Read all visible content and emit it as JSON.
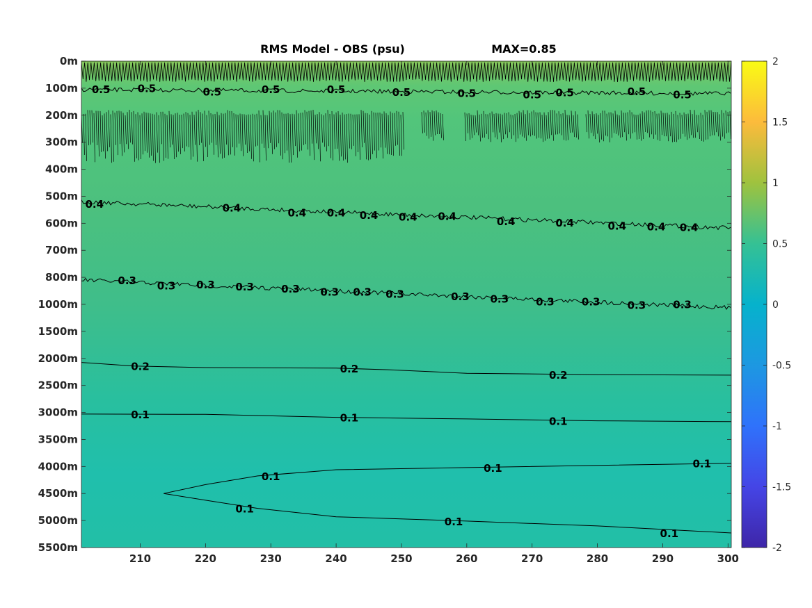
{
  "chart_data": {
    "type": "heatmap",
    "title": "RMS Model - OBS (psu)",
    "subtitle": "MAX=0.85",
    "x_ticks": [
      210,
      220,
      230,
      240,
      250,
      260,
      270,
      280,
      290,
      300
    ],
    "x_range": [
      201,
      300.5
    ],
    "y_tick_labels": [
      "0m",
      "100m",
      "200m",
      "300m",
      "400m",
      "500m",
      "600m",
      "700m",
      "800m",
      "1000m",
      "1500m",
      "2000m",
      "2500m",
      "3000m",
      "3500m",
      "4000m",
      "4500m",
      "5000m",
      "5500m"
    ],
    "colorbar": {
      "range": [
        -2,
        2
      ],
      "ticks": [
        "2",
        "1.5",
        "1",
        "0.5",
        "0",
        "-0.5",
        "-1",
        "-1.5",
        "-2"
      ]
    },
    "field": {
      "description_levels": [
        {
          "level": 0,
          "value": 0.66
        },
        {
          "level": 1,
          "value": 0.43
        },
        {
          "level": 11,
          "value": 0.21
        },
        {
          "level": 13,
          "value": 0.12
        },
        {
          "level": 18,
          "value": 0.06
        }
      ]
    },
    "contours": [
      {
        "level_label": "0.5",
        "y_level": 1.05,
        "noisy": true,
        "labels": [
          {
            "x": 204,
            "text": "0.5"
          },
          {
            "x": 211,
            "text": "0.5"
          },
          {
            "x": 221,
            "text": "0.5"
          },
          {
            "x": 230,
            "text": "0.5"
          },
          {
            "x": 240,
            "text": "0.5"
          },
          {
            "x": 250,
            "text": "0.5"
          },
          {
            "x": 260,
            "text": "0.5"
          },
          {
            "x": 270,
            "text": "0.5"
          },
          {
            "x": 275,
            "text": "0.5"
          },
          {
            "x": 286,
            "text": "0.5"
          },
          {
            "x": 293,
            "text": "0.5"
          }
        ]
      },
      {
        "level_label": "0.4",
        "y_level": 5.2,
        "noisy": true,
        "labels": [
          {
            "x": 203,
            "text": "0.4"
          },
          {
            "x": 224,
            "text": "0.4"
          },
          {
            "x": 234,
            "text": "0.4"
          },
          {
            "x": 240,
            "text": "0.4"
          },
          {
            "x": 245,
            "text": "0.4"
          },
          {
            "x": 251,
            "text": "0.4"
          },
          {
            "x": 257,
            "text": "0.4"
          },
          {
            "x": 266,
            "text": "0.4"
          },
          {
            "x": 275,
            "text": "0.4"
          },
          {
            "x": 283,
            "text": "0.4"
          },
          {
            "x": 289,
            "text": "0.4"
          },
          {
            "x": 294,
            "text": "0.4"
          }
        ]
      },
      {
        "level_label": "0.3",
        "y_level": 8.1,
        "noisy": true,
        "labels": [
          {
            "x": 208,
            "text": "0.3"
          },
          {
            "x": 214,
            "text": "0.3"
          },
          {
            "x": 220,
            "text": "0.3"
          },
          {
            "x": 226,
            "text": "0.3"
          },
          {
            "x": 233,
            "text": "0.3"
          },
          {
            "x": 239,
            "text": "0.3"
          },
          {
            "x": 244,
            "text": "0.3"
          },
          {
            "x": 249,
            "text": "0.3"
          },
          {
            "x": 259,
            "text": "0.3"
          },
          {
            "x": 265,
            "text": "0.3"
          },
          {
            "x": 272,
            "text": "0.3"
          },
          {
            "x": 279,
            "text": "0.3"
          },
          {
            "x": 286,
            "text": "0.3"
          },
          {
            "x": 293,
            "text": "0.3"
          }
        ]
      },
      {
        "level_label": "0.2",
        "path": [
          [
            201,
            11.15
          ],
          [
            209,
            11.28
          ],
          [
            220,
            11.34
          ],
          [
            240,
            11.36
          ],
          [
            248,
            11.42
          ],
          [
            260,
            11.55
          ],
          [
            280,
            11.6
          ],
          [
            300.5,
            11.62
          ]
        ],
        "labels": [
          {
            "x": 210,
            "text": "0.2"
          },
          {
            "x": 242,
            "text": "0.2"
          },
          {
            "x": 274,
            "text": "0.2"
          }
        ]
      },
      {
        "level_label": "0.1",
        "path": [
          [
            201,
            13.06
          ],
          [
            220,
            13.07
          ],
          [
            240,
            13.18
          ],
          [
            260,
            13.24
          ],
          [
            280,
            13.31
          ],
          [
            300.5,
            13.34
          ]
        ],
        "labels": [
          {
            "x": 210,
            "text": "0.1"
          },
          {
            "x": 242,
            "text": "0.1"
          },
          {
            "x": 274,
            "text": "0.1"
          }
        ]
      },
      {
        "level_label": "0.1",
        "path": [
          [
            213.6,
            16.0
          ],
          [
            220,
            15.67
          ],
          [
            228,
            15.35
          ],
          [
            240,
            15.12
          ],
          [
            260,
            15.04
          ],
          [
            280,
            14.96
          ],
          [
            300.5,
            14.88
          ]
        ],
        "labels": [
          {
            "x": 230,
            "text": "0.1"
          },
          {
            "x": 264,
            "text": "0.1"
          },
          {
            "x": 296,
            "text": "0.1"
          }
        ]
      },
      {
        "level_label": "0.1",
        "path": [
          [
            213.6,
            16.0
          ],
          [
            220,
            16.25
          ],
          [
            228,
            16.55
          ],
          [
            240,
            16.86
          ],
          [
            260,
            17.02
          ],
          [
            280,
            17.2
          ],
          [
            300.5,
            17.46
          ]
        ],
        "labels": [
          {
            "x": 226,
            "text": "0.1"
          },
          {
            "x": 258,
            "text": "0.1"
          },
          {
            "x": 291,
            "text": "0.1"
          }
        ]
      }
    ]
  }
}
